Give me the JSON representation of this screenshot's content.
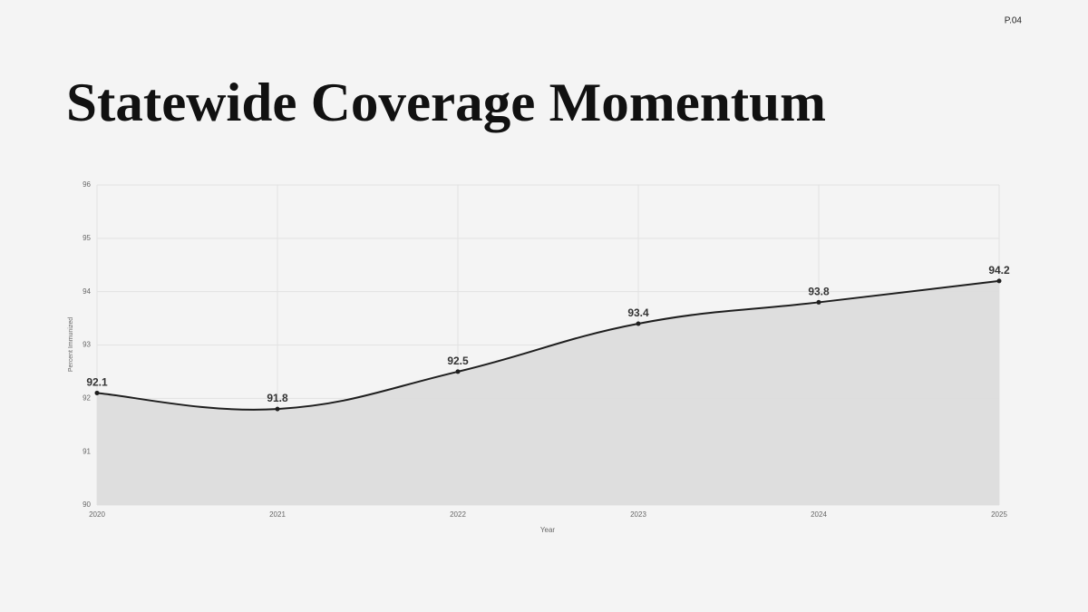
{
  "page_label": "P.04",
  "chart_data": {
    "type": "line",
    "title": "Statewide Coverage Momentum",
    "x_label": "Year",
    "y_label": "Percent Immunized",
    "x": [
      2020,
      2021,
      2022,
      2023,
      2024,
      2025
    ],
    "series": [
      {
        "name": "Percent Immunized",
        "color": "#1e1e1e",
        "fill": "#dcdcdc",
        "values": [
          92.1,
          91.8,
          92.5,
          93.4,
          93.8,
          94.2
        ]
      }
    ],
    "xlim": [
      2020,
      2025
    ],
    "xticks": [
      2020,
      2021,
      2022,
      2023,
      2024,
      2025
    ],
    "ylim": [
      90,
      96
    ],
    "yticks": [
      90,
      91,
      92,
      93,
      94,
      95,
      96
    ],
    "grid": true,
    "smooth": true
  }
}
